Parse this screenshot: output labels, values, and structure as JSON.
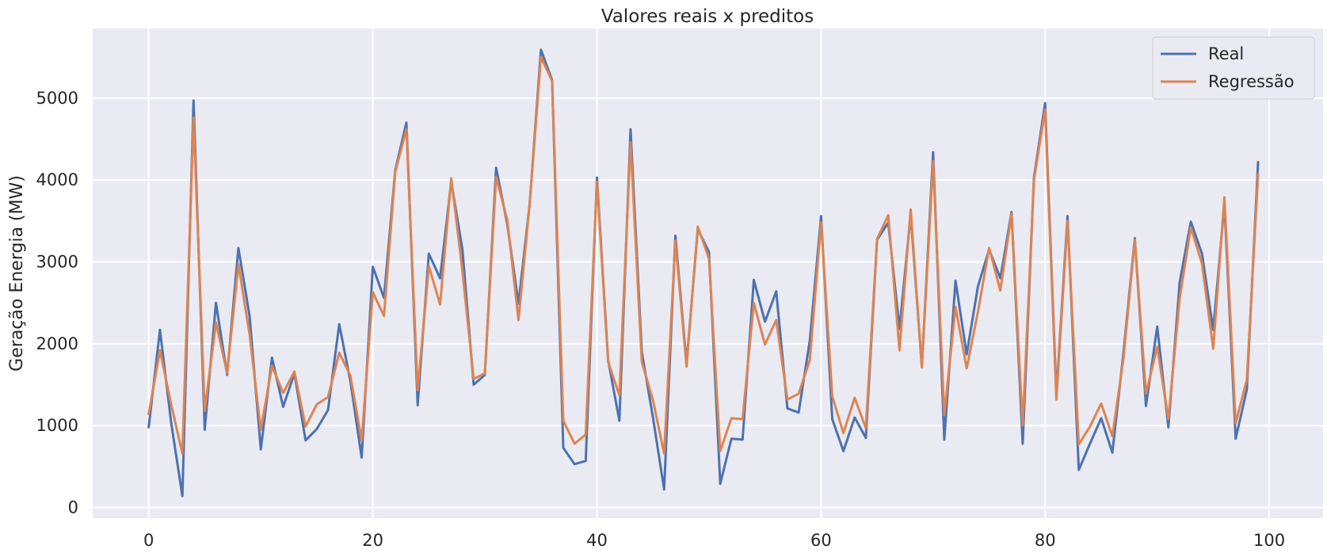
{
  "chart_data": {
    "type": "line",
    "title": "Valores reais x preditos",
    "xlabel": "",
    "ylabel": "Geração Energia (MW)",
    "xlim": [
      -5,
      104.8
    ],
    "ylim": [
      -130,
      5850
    ],
    "xticks": [
      0,
      20,
      40,
      60,
      80,
      100
    ],
    "yticks": [
      0,
      1000,
      2000,
      3000,
      4000,
      5000
    ],
    "grid": true,
    "legend_position": "top-right",
    "series": [
      {
        "name": "Real",
        "color": "#4c72b0",
        "values": [
          980,
          2170,
          1040,
          140,
          4970,
          950,
          2500,
          1620,
          3170,
          2340,
          710,
          1830,
          1230,
          1640,
          820,
          960,
          1190,
          2240,
          1540,
          610,
          2940,
          2560,
          4120,
          4700,
          1250,
          3100,
          2800,
          3980,
          3150,
          1500,
          1620,
          4150,
          3460,
          2490,
          3710,
          5590,
          5220,
          730,
          530,
          570,
          4030,
          1800,
          1060,
          4620,
          1900,
          1100,
          220,
          3320,
          1760,
          3400,
          3120,
          290,
          840,
          830,
          2780,
          2270,
          2640,
          1210,
          1160,
          2040,
          3560,
          1080,
          690,
          1100,
          850,
          3270,
          3480,
          2180,
          3580,
          1720,
          4340,
          830,
          2770,
          1870,
          2700,
          3150,
          2800,
          3610,
          780,
          4030,
          4940,
          1380,
          3560,
          460,
          780,
          1090,
          670,
          1900,
          3290,
          1240,
          2210,
          980,
          2750,
          3490,
          3100,
          2170,
          3710,
          840,
          1440,
          4220
        ]
      },
      {
        "name": "Regressão",
        "color": "#dd8452",
        "values": [
          1140,
          1920,
          1260,
          660,
          4760,
          1180,
          2260,
          1640,
          2970,
          2120,
          950,
          1730,
          1400,
          1660,
          990,
          1260,
          1350,
          1890,
          1610,
          820,
          2630,
          2340,
          4100,
          4620,
          1430,
          2950,
          2480,
          4020,
          2890,
          1570,
          1640,
          4040,
          3510,
          2290,
          3710,
          5500,
          5210,
          1060,
          780,
          890,
          3980,
          1780,
          1370,
          4460,
          1780,
          1310,
          660,
          3260,
          1720,
          3430,
          3040,
          690,
          1090,
          1080,
          2500,
          1990,
          2290,
          1320,
          1390,
          1800,
          3480,
          1360,
          910,
          1340,
          970,
          3280,
          3570,
          1920,
          3640,
          1710,
          4230,
          1130,
          2450,
          1700,
          2390,
          3170,
          2650,
          3590,
          1000,
          4000,
          4860,
          1320,
          3500,
          770,
          990,
          1270,
          870,
          1830,
          3270,
          1390,
          1960,
          1080,
          2550,
          3420,
          2980,
          1940,
          3790,
          1030,
          1560,
          4070
        ]
      }
    ]
  }
}
